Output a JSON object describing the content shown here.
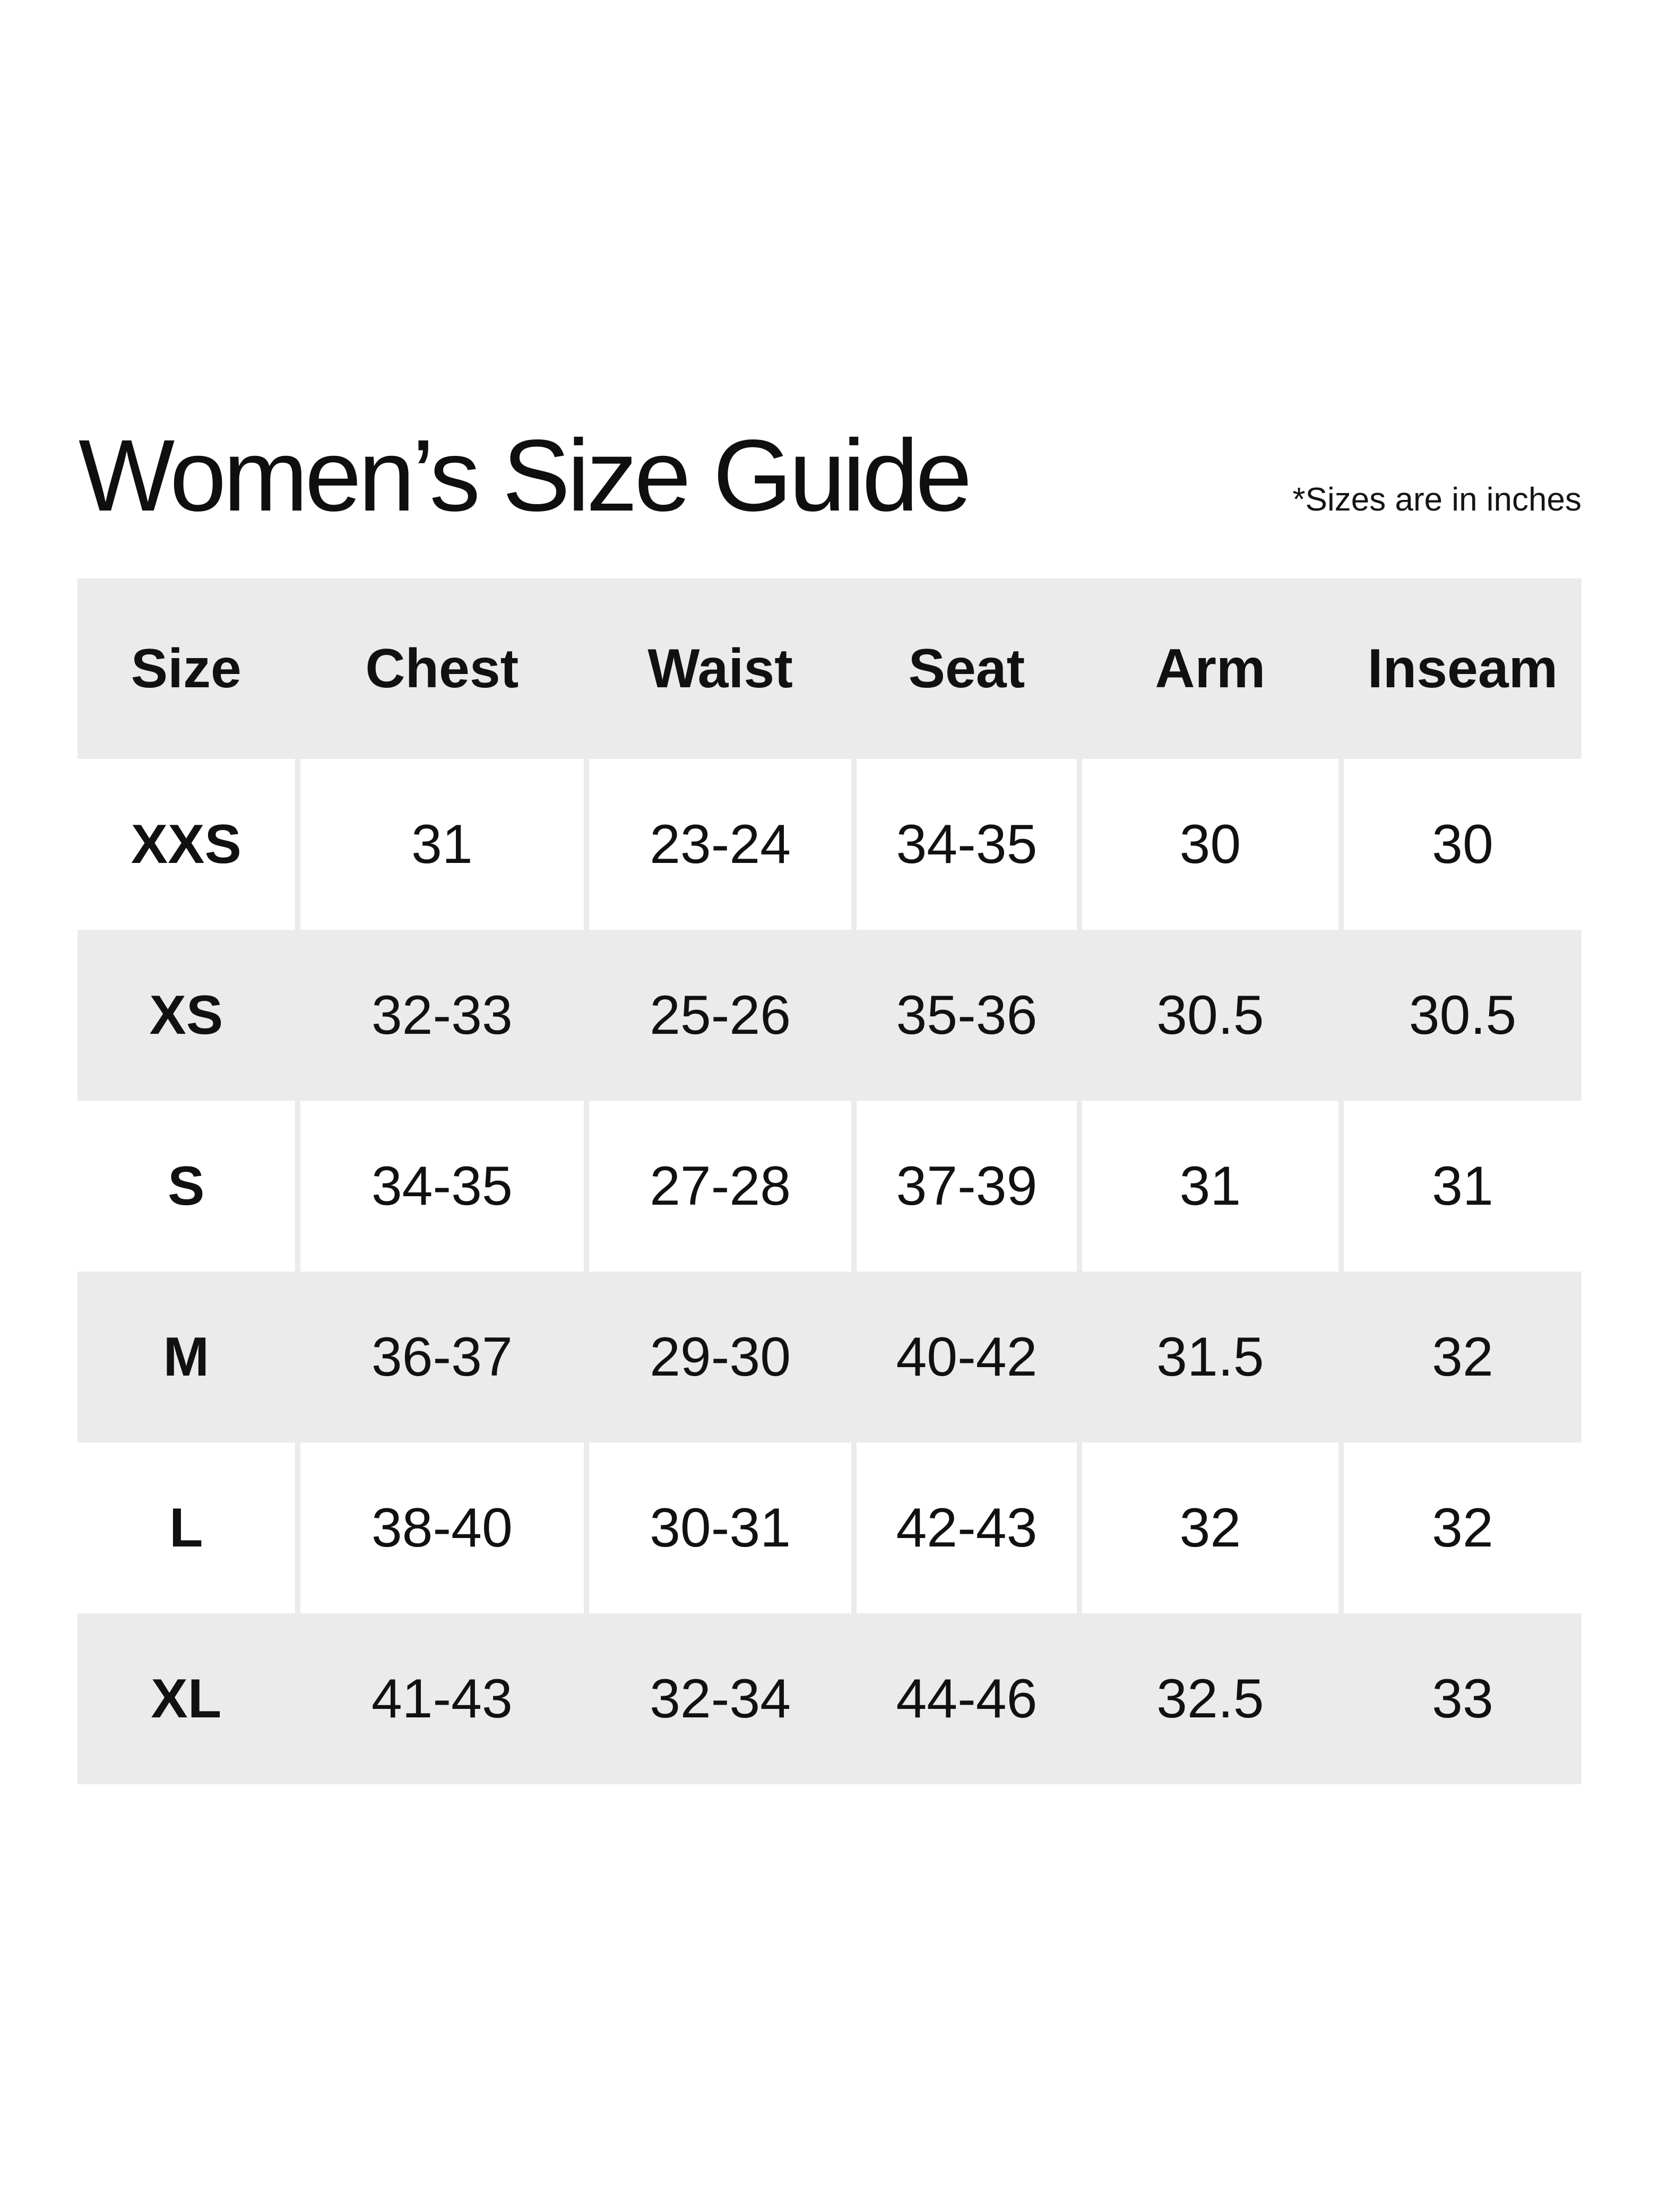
{
  "page": {
    "title": "Women’s Size Guide",
    "note": "*Sizes are in inches"
  },
  "colors": {
    "band_gray": "#ebebeb",
    "row_white": "#ffffff",
    "text": "#111111",
    "background": "#ffffff"
  },
  "table": {
    "columns": [
      "Size",
      "Chest",
      "Waist",
      "Seat",
      "Arm",
      "Inseam"
    ],
    "rows": [
      [
        "XXS",
        "31",
        "23-24",
        "34-35",
        "30",
        "30"
      ],
      [
        "XS",
        "32-33",
        "25-26",
        "35-36",
        "30.5",
        "30.5"
      ],
      [
        "S",
        "34-35",
        "27-28",
        "37-39",
        "31",
        "31"
      ],
      [
        "M",
        "36-37",
        "29-30",
        "40-42",
        "31.5",
        "32"
      ],
      [
        "L",
        "38-40",
        "30-31",
        "42-43",
        "32",
        "32"
      ],
      [
        "XL",
        "41-43",
        "32-34",
        "44-46",
        "32.5",
        "33"
      ]
    ]
  }
}
